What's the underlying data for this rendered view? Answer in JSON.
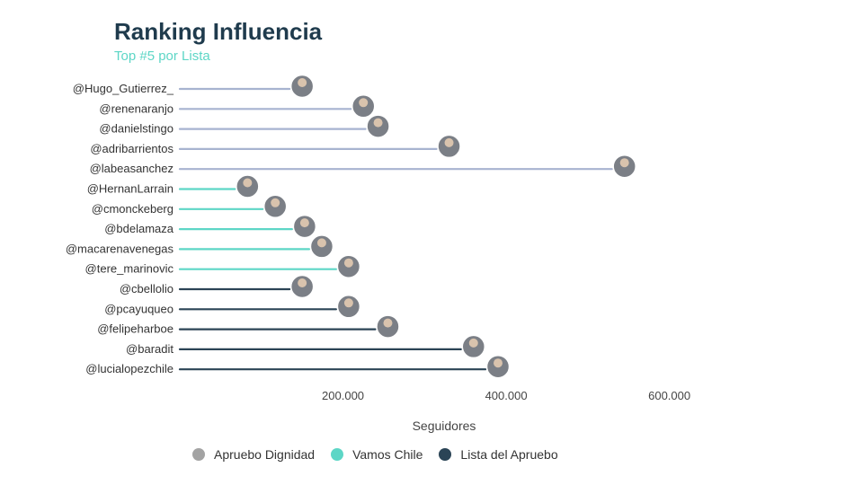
{
  "chart_data": {
    "type": "lollipop",
    "title": "Ranking Influencia",
    "subtitle": "Top #5 por Lista",
    "xlabel": "Seguidores",
    "xlim": [
      0,
      650000
    ],
    "xticks": [
      200000,
      400000,
      600000
    ],
    "xtick_labels": [
      "200.000",
      "400.000",
      "600.000"
    ],
    "grid": false,
    "legend_position": "bottom",
    "series": [
      {
        "name": "Apruebo Dignidad",
        "color": "#a7b3d0",
        "legend_color": "#a3a3a3"
      },
      {
        "name": "Vamos Chile",
        "color": "#5dd6c6",
        "legend_color": "#5dd6c6"
      },
      {
        "name": "Lista del Apruebo",
        "color": "#2b4456",
        "legend_color": "#2b4456"
      }
    ],
    "points": [
      {
        "label": "@Hugo_Gutierrez_",
        "value": 150000,
        "series": "Apruebo Dignidad"
      },
      {
        "label": "@renenaranjo",
        "value": 225000,
        "series": "Apruebo Dignidad"
      },
      {
        "label": "@danielstingo",
        "value": 243000,
        "series": "Apruebo Dignidad"
      },
      {
        "label": "@adribarrientos",
        "value": 330000,
        "series": "Apruebo Dignidad"
      },
      {
        "label": "@labeasanchez",
        "value": 545000,
        "series": "Apruebo Dignidad"
      },
      {
        "label": "@HernanLarrain",
        "value": 83000,
        "series": "Vamos Chile"
      },
      {
        "label": "@cmonckeberg",
        "value": 117000,
        "series": "Vamos Chile"
      },
      {
        "label": "@bdelamaza",
        "value": 153000,
        "series": "Vamos Chile"
      },
      {
        "label": "@macarenavenegas",
        "value": 174000,
        "series": "Vamos Chile"
      },
      {
        "label": "@tere_marinovic",
        "value": 207000,
        "series": "Vamos Chile"
      },
      {
        "label": "@cbellolio",
        "value": 150000,
        "series": "Lista del Apruebo"
      },
      {
        "label": "@pcayuqueo",
        "value": 207000,
        "series": "Lista del Apruebo"
      },
      {
        "label": "@felipeharboe",
        "value": 255000,
        "series": "Lista del Apruebo"
      },
      {
        "label": "@baradit",
        "value": 360000,
        "series": "Lista del Apruebo"
      },
      {
        "label": "@lucialopezchile",
        "value": 390000,
        "series": "Lista del Apruebo"
      }
    ]
  }
}
